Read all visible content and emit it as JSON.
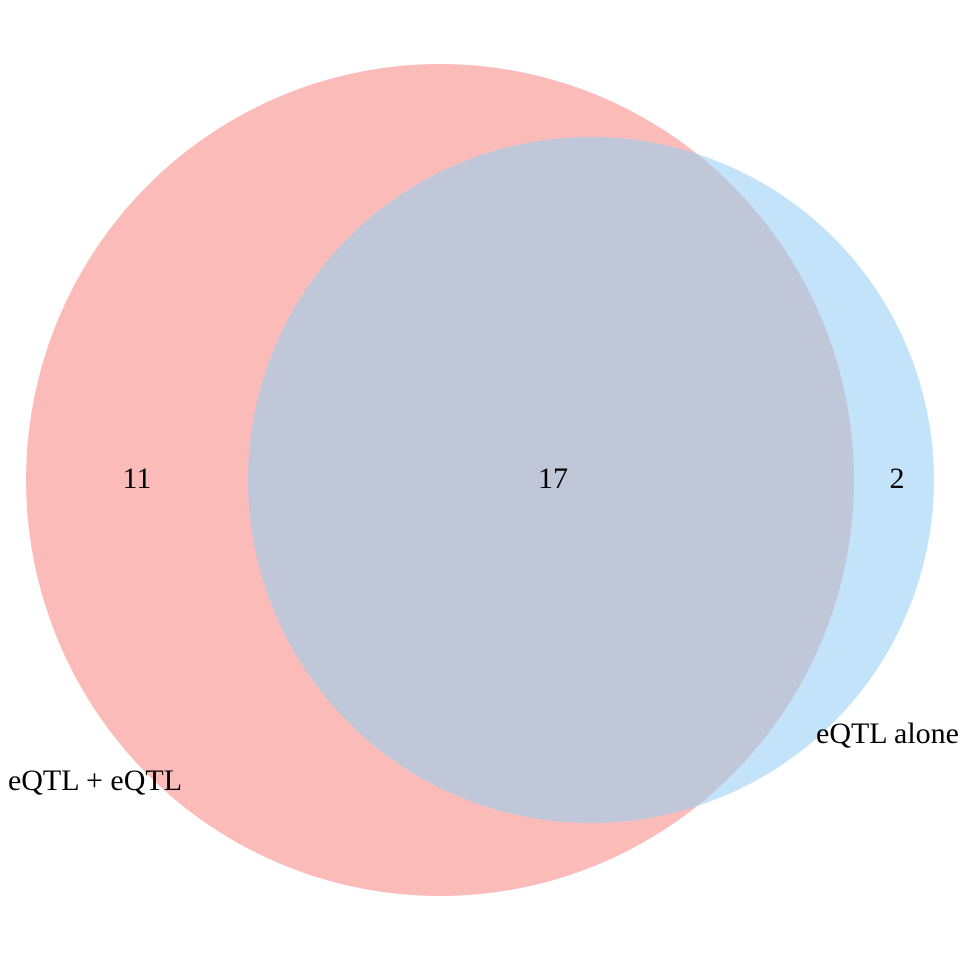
{
  "sets": [
    {
      "id": "a",
      "label": "eQTL + eQTL",
      "only_count": "11",
      "color": "#fbb4b1",
      "opacity": 0.9
    },
    {
      "id": "b",
      "label": "eQTL alone",
      "only_count": "2",
      "color": "#b9def9",
      "opacity": 0.85
    }
  ],
  "intersection": {
    "count": "17",
    "color": "#c0c7d9"
  },
  "background": "#ffffff"
}
